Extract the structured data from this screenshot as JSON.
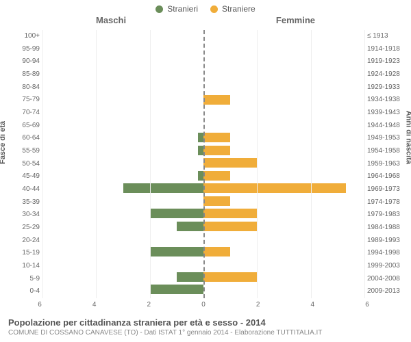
{
  "legend": {
    "male_label": "Stranieri",
    "female_label": "Straniere"
  },
  "headers": {
    "left": "Maschi",
    "right": "Femmine"
  },
  "axis_labels": {
    "left": "Fasce di età",
    "right": "Anni di nascita"
  },
  "colors": {
    "male": "#6b8e5a",
    "female": "#f0ad3a",
    "background": "#ffffff",
    "grid": "#eeeeee",
    "center": "#888888",
    "text": "#666666"
  },
  "chart": {
    "type": "bar",
    "xmax": 6,
    "xticks": [
      6,
      4,
      2,
      0,
      2,
      4,
      6
    ],
    "rows": [
      {
        "age": "100+",
        "birth": "≤ 1913",
        "m": 0,
        "f": 0
      },
      {
        "age": "95-99",
        "birth": "1914-1918",
        "m": 0,
        "f": 0
      },
      {
        "age": "90-94",
        "birth": "1919-1923",
        "m": 0,
        "f": 0
      },
      {
        "age": "85-89",
        "birth": "1924-1928",
        "m": 0,
        "f": 0
      },
      {
        "age": "80-84",
        "birth": "1929-1933",
        "m": 0,
        "f": 0
      },
      {
        "age": "75-79",
        "birth": "1934-1938",
        "m": 0,
        "f": 1
      },
      {
        "age": "70-74",
        "birth": "1939-1943",
        "m": 0,
        "f": 0
      },
      {
        "age": "65-69",
        "birth": "1944-1948",
        "m": 0,
        "f": 0
      },
      {
        "age": "60-64",
        "birth": "1949-1953",
        "m": 0.2,
        "f": 1
      },
      {
        "age": "55-59",
        "birth": "1954-1958",
        "m": 0.2,
        "f": 1
      },
      {
        "age": "50-54",
        "birth": "1959-1963",
        "m": 0,
        "f": 2
      },
      {
        "age": "45-49",
        "birth": "1964-1968",
        "m": 0.2,
        "f": 1
      },
      {
        "age": "40-44",
        "birth": "1969-1973",
        "m": 3,
        "f": 5.3
      },
      {
        "age": "35-39",
        "birth": "1974-1978",
        "m": 0,
        "f": 1
      },
      {
        "age": "30-34",
        "birth": "1979-1983",
        "m": 2,
        "f": 2
      },
      {
        "age": "25-29",
        "birth": "1984-1988",
        "m": 1,
        "f": 2
      },
      {
        "age": "20-24",
        "birth": "1989-1993",
        "m": 0,
        "f": 0
      },
      {
        "age": "15-19",
        "birth": "1994-1998",
        "m": 2,
        "f": 1
      },
      {
        "age": "10-14",
        "birth": "1999-2003",
        "m": 0,
        "f": 0
      },
      {
        "age": "5-9",
        "birth": "2004-2008",
        "m": 1,
        "f": 2
      },
      {
        "age": "0-4",
        "birth": "2009-2013",
        "m": 2,
        "f": 0
      }
    ]
  },
  "footer": {
    "title": "Popolazione per cittadinanza straniera per età e sesso - 2014",
    "sub": "COMUNE DI COSSANO CANAVESE (TO) - Dati ISTAT 1° gennaio 2014 - Elaborazione TUTTITALIA.IT"
  }
}
